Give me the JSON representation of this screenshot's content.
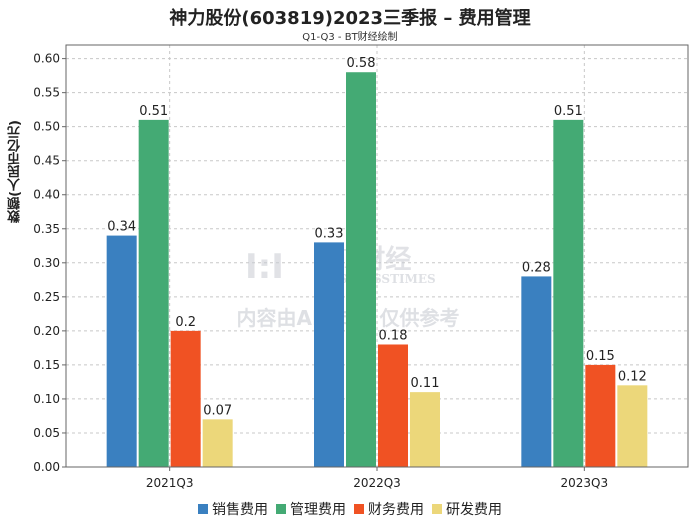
{
  "chart_data": {
    "type": "bar",
    "title": "神力股份(603819)2023三季报 – 费用管理",
    "subtitle": "Q1-Q3 - BT财经绘制",
    "xlabel": "",
    "ylabel": "数额(人民币亿元)",
    "categories": [
      "2021Q3",
      "2022Q3",
      "2023Q3"
    ],
    "ylim": [
      0,
      0.62
    ],
    "yticks": [
      "0.00",
      "0.05",
      "0.10",
      "0.15",
      "0.20",
      "0.25",
      "0.30",
      "0.35",
      "0.40",
      "0.45",
      "0.50",
      "0.55",
      "0.60"
    ],
    "grid": true,
    "legend_position": "bottom",
    "series": [
      {
        "name": "销售费用",
        "color": "#3a80c0",
        "values": [
          0.34,
          0.33,
          0.28
        ],
        "labels": [
          "0.34",
          "0.33",
          "0.28"
        ]
      },
      {
        "name": "管理费用",
        "color": "#44aa74",
        "values": [
          0.51,
          0.58,
          0.51
        ],
        "labels": [
          "0.51",
          "0.58",
          "0.51"
        ]
      },
      {
        "name": "财务费用",
        "color": "#f05223",
        "values": [
          0.2,
          0.18,
          0.15
        ],
        "labels": [
          "0.2",
          "0.18",
          "0.15"
        ]
      },
      {
        "name": "研发费用",
        "color": "#ecd77a",
        "values": [
          0.07,
          0.11,
          0.12
        ],
        "labels": [
          "0.07",
          "0.11",
          "0.12"
        ]
      }
    ]
  },
  "watermark": {
    "logo_text": "BT财经",
    "logo_subtext": "BUSINESSTIMES",
    "notice": "内容由AI生成，仅供参考"
  }
}
